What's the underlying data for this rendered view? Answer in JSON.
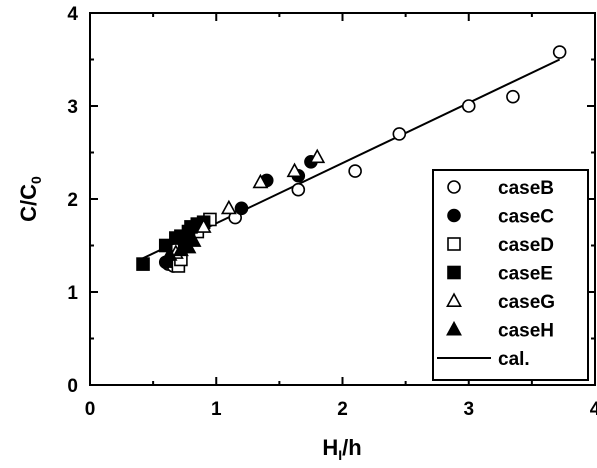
{
  "chart_data": {
    "type": "scatter",
    "title": "",
    "xlabel": {
      "main": "H",
      "sub": "I",
      "rest": "/h"
    },
    "ylabel": {
      "main": "C/C",
      "sub": "0"
    },
    "xlim": [
      0,
      4
    ],
    "ylim": [
      0,
      4
    ],
    "x_ticks": [
      "0",
      "1",
      "2",
      "3",
      "4"
    ],
    "y_ticks": [
      "0",
      "1",
      "2",
      "3",
      "4"
    ],
    "grid": false,
    "legend_position": "bottom-right",
    "series": [
      {
        "name": "caseB",
        "marker": "circle-open",
        "points": [
          [
            0.62,
            1.3
          ],
          [
            0.66,
            1.28
          ],
          [
            0.7,
            1.35
          ],
          [
            1.15,
            1.8
          ],
          [
            1.65,
            2.1
          ],
          [
            2.1,
            2.3
          ],
          [
            2.45,
            2.7
          ],
          [
            3.0,
            3.0
          ],
          [
            3.35,
            3.1
          ],
          [
            3.72,
            3.58
          ]
        ]
      },
      {
        "name": "caseC",
        "marker": "circle-filled",
        "points": [
          [
            0.6,
            1.32
          ],
          [
            0.65,
            1.33
          ],
          [
            1.2,
            1.9
          ],
          [
            1.4,
            2.2
          ],
          [
            1.65,
            2.25
          ],
          [
            1.75,
            2.4
          ]
        ]
      },
      {
        "name": "caseD",
        "marker": "square-open",
        "points": [
          [
            0.7,
            1.28
          ],
          [
            0.72,
            1.35
          ],
          [
            0.85,
            1.65
          ],
          [
            0.95,
            1.78
          ]
        ]
      },
      {
        "name": "caseE",
        "marker": "square-filled",
        "points": [
          [
            0.42,
            1.3
          ],
          [
            0.6,
            1.5
          ],
          [
            0.68,
            1.58
          ],
          [
            0.72,
            1.6
          ],
          [
            0.75,
            1.55
          ],
          [
            0.78,
            1.65
          ],
          [
            0.8,
            1.7
          ],
          [
            0.85,
            1.73
          ],
          [
            0.9,
            1.75
          ]
        ]
      },
      {
        "name": "caseG",
        "marker": "triangle-open",
        "points": [
          [
            0.68,
            1.42
          ],
          [
            0.9,
            1.7
          ],
          [
            1.1,
            1.9
          ],
          [
            1.35,
            2.18
          ],
          [
            1.62,
            2.3
          ],
          [
            1.8,
            2.45
          ]
        ]
      },
      {
        "name": "caseH",
        "marker": "triangle-filled",
        "points": [
          [
            0.63,
            1.4
          ],
          [
            0.72,
            1.45
          ],
          [
            0.75,
            1.5
          ],
          [
            0.78,
            1.48
          ],
          [
            0.82,
            1.55
          ]
        ]
      },
      {
        "name": "cal.",
        "marker": "line",
        "points": [
          [
            0.4,
            1.35
          ],
          [
            3.72,
            3.5
          ]
        ]
      }
    ]
  }
}
